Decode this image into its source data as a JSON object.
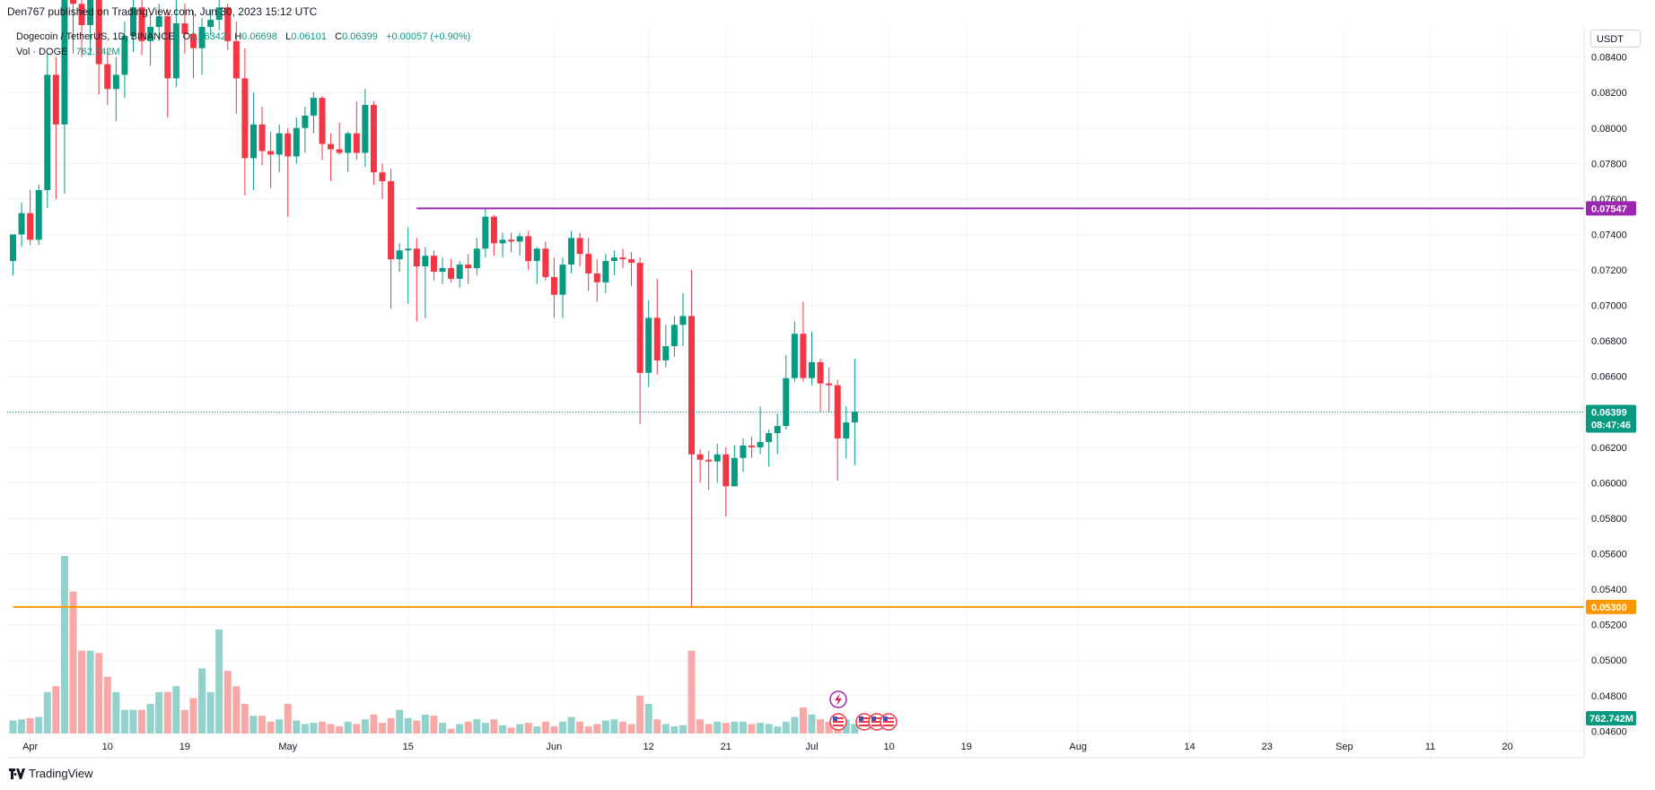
{
  "header": {
    "published_text": "Den767 published on TradingView.com, Jun 30, 2023 15:12 UTC"
  },
  "legend": {
    "symbol": "Dogecoin / TetherUS, 1D, BINANCE",
    "open_label": "O",
    "open": "0.06342",
    "high_label": "H",
    "high": "0.06698",
    "low_label": "L",
    "low": "0.06101",
    "close_label": "C",
    "close": "0.06399",
    "change": "+0.00057 (+0.90%)",
    "volume_label": "Vol · DOGE",
    "volume": "762.742M"
  },
  "currency_button": "USDT",
  "footer": {
    "brand": "TradingView"
  },
  "colors": {
    "up": "#089981",
    "down": "#f23645",
    "up_volume": "#92d2cc",
    "down_volume": "#f7a9a7",
    "resistance": "#9c27b0",
    "support": "#ff9800",
    "grid": "#f0f3fa"
  },
  "chart_data": {
    "type": "candlestick",
    "y_ticks": [
      "0.08400",
      "0.08200",
      "0.08000",
      "0.07800",
      "0.07600",
      "0.07400",
      "0.07200",
      "0.07000",
      "0.06800",
      "0.06600",
      "0.06400",
      "0.06200",
      "0.06000",
      "0.05800",
      "0.05600",
      "0.05400",
      "0.05200",
      "0.05000",
      "0.04800",
      "0.04600"
    ],
    "y_range": [
      0.0445,
      0.0857
    ],
    "x_ticks": [
      {
        "label": "Apr",
        "date": "2023-04-01"
      },
      {
        "label": "10",
        "date": "2023-04-10"
      },
      {
        "label": "19",
        "date": "2023-04-19"
      },
      {
        "label": "May",
        "date": "2023-05-01"
      },
      {
        "label": "15",
        "date": "2023-05-15"
      },
      {
        "label": "Jun",
        "date": "2023-06-01"
      },
      {
        "label": "12",
        "date": "2023-06-12"
      },
      {
        "label": "21",
        "date": "2023-06-21"
      },
      {
        "label": "Jul",
        "date": "2023-07-01"
      },
      {
        "label": "10",
        "date": "2023-07-10"
      },
      {
        "label": "19",
        "date": "2023-07-19"
      },
      {
        "label": "Aug",
        "date": "2023-08-01"
      },
      {
        "label": "14",
        "date": "2023-08-14"
      },
      {
        "label": "23",
        "date": "2023-08-23"
      },
      {
        "label": "Sep",
        "date": "2023-09-01"
      },
      {
        "label": "11",
        "date": "2023-09-11"
      },
      {
        "label": "20",
        "date": "2023-09-20"
      }
    ],
    "horizontal_lines": [
      {
        "value": 0.07547,
        "label": "0.07547",
        "color": "#9c27b0",
        "start_date": "2023-05-16"
      },
      {
        "value": 0.053,
        "label": "0.05300",
        "color": "#ff9800",
        "start_date": "2023-03-30"
      }
    ],
    "last_price": {
      "value": 0.06399,
      "label": "0.06399",
      "countdown": "08:47:46"
    },
    "last_volume_label": "762.742M",
    "candles": [
      {
        "d": "2023-03-30",
        "o": 0.0725,
        "h": 0.0738,
        "l": 0.0717,
        "c": 0.074,
        "v": 11
      },
      {
        "d": "2023-03-31",
        "o": 0.074,
        "h": 0.0758,
        "l": 0.0733,
        "c": 0.0752,
        "v": 12
      },
      {
        "d": "2023-04-01",
        "o": 0.0752,
        "h": 0.0765,
        "l": 0.0734,
        "c": 0.0737,
        "v": 13
      },
      {
        "d": "2023-04-02",
        "o": 0.0737,
        "h": 0.0768,
        "l": 0.0734,
        "c": 0.0765,
        "v": 14
      },
      {
        "d": "2023-04-03",
        "o": 0.0765,
        "h": 0.0842,
        "l": 0.0755,
        "c": 0.083,
        "v": 35
      },
      {
        "d": "2023-04-04",
        "o": 0.083,
        "h": 0.084,
        "l": 0.076,
        "c": 0.0802,
        "v": 40
      },
      {
        "d": "2023-04-05",
        "o": 0.0802,
        "h": 0.095,
        "l": 0.0763,
        "c": 0.0895,
        "v": 150
      },
      {
        "d": "2023-04-06",
        "o": 0.0895,
        "h": 0.0905,
        "l": 0.0842,
        "c": 0.087,
        "v": 120
      },
      {
        "d": "2023-04-07",
        "o": 0.087,
        "h": 0.0875,
        "l": 0.084,
        "c": 0.0858,
        "v": 70
      },
      {
        "d": "2023-04-08",
        "o": 0.0858,
        "h": 0.0878,
        "l": 0.0841,
        "c": 0.0873,
        "v": 70
      },
      {
        "d": "2023-04-09",
        "o": 0.0873,
        "h": 0.088,
        "l": 0.0819,
        "c": 0.0836,
        "v": 68
      },
      {
        "d": "2023-04-10",
        "o": 0.0836,
        "h": 0.0845,
        "l": 0.0813,
        "c": 0.0822,
        "v": 48
      },
      {
        "d": "2023-04-11",
        "o": 0.0822,
        "h": 0.084,
        "l": 0.0804,
        "c": 0.083,
        "v": 35
      },
      {
        "d": "2023-04-12",
        "o": 0.083,
        "h": 0.086,
        "l": 0.0817,
        "c": 0.0852,
        "v": 20
      },
      {
        "d": "2023-04-13",
        "o": 0.0852,
        "h": 0.088,
        "l": 0.0843,
        "c": 0.0868,
        "v": 20
      },
      {
        "d": "2023-04-14",
        "o": 0.0868,
        "h": 0.0878,
        "l": 0.0841,
        "c": 0.0849,
        "v": 20
      },
      {
        "d": "2023-04-15",
        "o": 0.0849,
        "h": 0.0864,
        "l": 0.0835,
        "c": 0.0857,
        "v": 25
      },
      {
        "d": "2023-04-16",
        "o": 0.0857,
        "h": 0.087,
        "l": 0.0849,
        "c": 0.0863,
        "v": 35
      },
      {
        "d": "2023-04-17",
        "o": 0.0863,
        "h": 0.0867,
        "l": 0.0806,
        "c": 0.0828,
        "v": 35
      },
      {
        "d": "2023-04-18",
        "o": 0.0828,
        "h": 0.0875,
        "l": 0.0823,
        "c": 0.0859,
        "v": 40
      },
      {
        "d": "2023-04-19",
        "o": 0.0859,
        "h": 0.087,
        "l": 0.0842,
        "c": 0.0853,
        "v": 20
      },
      {
        "d": "2023-04-20",
        "o": 0.0853,
        "h": 0.0866,
        "l": 0.0828,
        "c": 0.0845,
        "v": 30
      },
      {
        "d": "2023-04-21",
        "o": 0.0845,
        "h": 0.0862,
        "l": 0.083,
        "c": 0.0857,
        "v": 55
      },
      {
        "d": "2023-04-22",
        "o": 0.0857,
        "h": 0.0867,
        "l": 0.0852,
        "c": 0.0861,
        "v": 35
      },
      {
        "d": "2023-04-23",
        "o": 0.0861,
        "h": 0.0878,
        "l": 0.0855,
        "c": 0.0868,
        "v": 88
      },
      {
        "d": "2023-04-24",
        "o": 0.0868,
        "h": 0.087,
        "l": 0.0844,
        "c": 0.0849,
        "v": 53
      },
      {
        "d": "2023-04-25",
        "o": 0.0849,
        "h": 0.086,
        "l": 0.0808,
        "c": 0.0828,
        "v": 40
      },
      {
        "d": "2023-04-26",
        "o": 0.0828,
        "h": 0.0845,
        "l": 0.0762,
        "c": 0.0783,
        "v": 25
      },
      {
        "d": "2023-04-27",
        "o": 0.0783,
        "h": 0.082,
        "l": 0.0765,
        "c": 0.0802,
        "v": 15
      },
      {
        "d": "2023-04-28",
        "o": 0.0802,
        "h": 0.0812,
        "l": 0.0779,
        "c": 0.0787,
        "v": 15
      },
      {
        "d": "2023-04-29",
        "o": 0.0787,
        "h": 0.0798,
        "l": 0.0766,
        "c": 0.0785,
        "v": 10
      },
      {
        "d": "2023-04-30",
        "o": 0.0785,
        "h": 0.0802,
        "l": 0.0775,
        "c": 0.0797,
        "v": 12
      },
      {
        "d": "2023-05-01",
        "o": 0.0797,
        "h": 0.08,
        "l": 0.075,
        "c": 0.0784,
        "v": 25
      },
      {
        "d": "2023-05-02",
        "o": 0.0784,
        "h": 0.0806,
        "l": 0.078,
        "c": 0.08,
        "v": 11
      },
      {
        "d": "2023-05-03",
        "o": 0.08,
        "h": 0.0812,
        "l": 0.0786,
        "c": 0.0807,
        "v": 8
      },
      {
        "d": "2023-05-04",
        "o": 0.0807,
        "h": 0.082,
        "l": 0.0797,
        "c": 0.0817,
        "v": 9
      },
      {
        "d": "2023-05-05",
        "o": 0.0817,
        "h": 0.0818,
        "l": 0.0782,
        "c": 0.0791,
        "v": 10
      },
      {
        "d": "2023-05-06",
        "o": 0.0791,
        "h": 0.0797,
        "l": 0.077,
        "c": 0.0788,
        "v": 8
      },
      {
        "d": "2023-05-07",
        "o": 0.0788,
        "h": 0.0803,
        "l": 0.0785,
        "c": 0.0786,
        "v": 6
      },
      {
        "d": "2023-05-08",
        "o": 0.0786,
        "h": 0.0798,
        "l": 0.0775,
        "c": 0.0797,
        "v": 10
      },
      {
        "d": "2023-05-09",
        "o": 0.0797,
        "h": 0.0815,
        "l": 0.0782,
        "c": 0.0786,
        "v": 8
      },
      {
        "d": "2023-05-10",
        "o": 0.0786,
        "h": 0.0822,
        "l": 0.0778,
        "c": 0.0813,
        "v": 12
      },
      {
        "d": "2023-05-11",
        "o": 0.0813,
        "h": 0.0815,
        "l": 0.0768,
        "c": 0.0775,
        "v": 16
      },
      {
        "d": "2023-05-12",
        "o": 0.0775,
        "h": 0.078,
        "l": 0.076,
        "c": 0.077,
        "v": 9
      },
      {
        "d": "2023-05-13",
        "o": 0.077,
        "h": 0.0777,
        "l": 0.0698,
        "c": 0.0726,
        "v": 13
      },
      {
        "d": "2023-05-14",
        "o": 0.0726,
        "h": 0.0735,
        "l": 0.0719,
        "c": 0.0731,
        "v": 20
      },
      {
        "d": "2023-05-15",
        "o": 0.0731,
        "h": 0.0744,
        "l": 0.0701,
        "c": 0.0732,
        "v": 13
      },
      {
        "d": "2023-05-16",
        "o": 0.0732,
        "h": 0.0738,
        "l": 0.0691,
        "c": 0.0722,
        "v": 11
      },
      {
        "d": "2023-05-17",
        "o": 0.0722,
        "h": 0.0733,
        "l": 0.0693,
        "c": 0.0728,
        "v": 16
      },
      {
        "d": "2023-05-18",
        "o": 0.0728,
        "h": 0.0731,
        "l": 0.0714,
        "c": 0.0719,
        "v": 15
      },
      {
        "d": "2023-05-19",
        "o": 0.0719,
        "h": 0.0727,
        "l": 0.0712,
        "c": 0.0721,
        "v": 9
      },
      {
        "d": "2023-05-20",
        "o": 0.0721,
        "h": 0.0726,
        "l": 0.0713,
        "c": 0.0715,
        "v": 4
      },
      {
        "d": "2023-05-21",
        "o": 0.0715,
        "h": 0.0725,
        "l": 0.071,
        "c": 0.0723,
        "v": 8
      },
      {
        "d": "2023-05-22",
        "o": 0.0723,
        "h": 0.0729,
        "l": 0.0712,
        "c": 0.0721,
        "v": 10
      },
      {
        "d": "2023-05-23",
        "o": 0.0721,
        "h": 0.0738,
        "l": 0.0717,
        "c": 0.0732,
        "v": 12
      },
      {
        "d": "2023-05-24",
        "o": 0.0732,
        "h": 0.0755,
        "l": 0.0727,
        "c": 0.075,
        "v": 9
      },
      {
        "d": "2023-05-25",
        "o": 0.075,
        "h": 0.0751,
        "l": 0.0728,
        "c": 0.0735,
        "v": 12
      },
      {
        "d": "2023-05-26",
        "o": 0.0735,
        "h": 0.0741,
        "l": 0.0727,
        "c": 0.0737,
        "v": 7
      },
      {
        "d": "2023-05-27",
        "o": 0.0737,
        "h": 0.0741,
        "l": 0.073,
        "c": 0.0736,
        "v": 5
      },
      {
        "d": "2023-05-28",
        "o": 0.0736,
        "h": 0.0741,
        "l": 0.0728,
        "c": 0.0739,
        "v": 8
      },
      {
        "d": "2023-05-29",
        "o": 0.0739,
        "h": 0.0742,
        "l": 0.072,
        "c": 0.0725,
        "v": 9
      },
      {
        "d": "2023-05-30",
        "o": 0.0725,
        "h": 0.0733,
        "l": 0.0712,
        "c": 0.0732,
        "v": 6
      },
      {
        "d": "2023-05-31",
        "o": 0.0732,
        "h": 0.0736,
        "l": 0.0714,
        "c": 0.0716,
        "v": 10
      },
      {
        "d": "2023-06-01",
        "o": 0.0716,
        "h": 0.0727,
        "l": 0.0693,
        "c": 0.0706,
        "v": 6
      },
      {
        "d": "2023-06-02",
        "o": 0.0706,
        "h": 0.0727,
        "l": 0.0693,
        "c": 0.0723,
        "v": 10
      },
      {
        "d": "2023-06-03",
        "o": 0.0723,
        "h": 0.0742,
        "l": 0.0718,
        "c": 0.0738,
        "v": 14
      },
      {
        "d": "2023-06-04",
        "o": 0.0738,
        "h": 0.0741,
        "l": 0.0722,
        "c": 0.0729,
        "v": 10
      },
      {
        "d": "2023-06-05",
        "o": 0.0729,
        "h": 0.0738,
        "l": 0.0708,
        "c": 0.0718,
        "v": 6
      },
      {
        "d": "2023-06-06",
        "o": 0.0718,
        "h": 0.0726,
        "l": 0.0702,
        "c": 0.0713,
        "v": 8
      },
      {
        "d": "2023-06-07",
        "o": 0.0713,
        "h": 0.0729,
        "l": 0.0707,
        "c": 0.0725,
        "v": 11
      },
      {
        "d": "2023-06-08",
        "o": 0.0725,
        "h": 0.0731,
        "l": 0.0717,
        "c": 0.0727,
        "v": 12
      },
      {
        "d": "2023-06-09",
        "o": 0.0727,
        "h": 0.0732,
        "l": 0.0721,
        "c": 0.0726,
        "v": 10
      },
      {
        "d": "2023-06-10",
        "o": 0.0726,
        "h": 0.073,
        "l": 0.0711,
        "c": 0.0724,
        "v": 8
      },
      {
        "d": "2023-06-11",
        "o": 0.0724,
        "h": 0.0727,
        "l": 0.0633,
        "c": 0.0662,
        "v": 32
      },
      {
        "d": "2023-06-12",
        "o": 0.0662,
        "h": 0.0703,
        "l": 0.0654,
        "c": 0.0693,
        "v": 25
      },
      {
        "d": "2023-06-13",
        "o": 0.0693,
        "h": 0.0715,
        "l": 0.0661,
        "c": 0.0669,
        "v": 12
      },
      {
        "d": "2023-06-14",
        "o": 0.0669,
        "h": 0.0689,
        "l": 0.0665,
        "c": 0.0677,
        "v": 8
      },
      {
        "d": "2023-06-15",
        "o": 0.0677,
        "h": 0.0694,
        "l": 0.0671,
        "c": 0.0689,
        "v": 6
      },
      {
        "d": "2023-06-16",
        "o": 0.0689,
        "h": 0.0707,
        "l": 0.0677,
        "c": 0.0694,
        "v": 7
      },
      {
        "d": "2023-06-17",
        "o": 0.0694,
        "h": 0.072,
        "l": 0.053,
        "c": 0.0616,
        "v": 70
      },
      {
        "d": "2023-06-18",
        "o": 0.0616,
        "h": 0.0619,
        "l": 0.06,
        "c": 0.0613,
        "v": 12
      },
      {
        "d": "2023-06-19",
        "o": 0.0613,
        "h": 0.0618,
        "l": 0.0596,
        "c": 0.0612,
        "v": 8
      },
      {
        "d": "2023-06-20",
        "o": 0.0612,
        "h": 0.0622,
        "l": 0.06,
        "c": 0.0616,
        "v": 10
      },
      {
        "d": "2023-06-21",
        "o": 0.0616,
        "h": 0.062,
        "l": 0.0581,
        "c": 0.0598,
        "v": 9
      },
      {
        "d": "2023-06-22",
        "o": 0.0598,
        "h": 0.0621,
        "l": 0.0598,
        "c": 0.0614,
        "v": 10
      },
      {
        "d": "2023-06-23",
        "o": 0.0614,
        "h": 0.0625,
        "l": 0.0606,
        "c": 0.0621,
        "v": 10
      },
      {
        "d": "2023-06-24",
        "o": 0.0621,
        "h": 0.0626,
        "l": 0.0614,
        "c": 0.062,
        "v": 8
      },
      {
        "d": "2023-06-25",
        "o": 0.062,
        "h": 0.0643,
        "l": 0.0616,
        "c": 0.0623,
        "v": 9
      },
      {
        "d": "2023-06-26",
        "o": 0.0623,
        "h": 0.063,
        "l": 0.0609,
        "c": 0.0628,
        "v": 8
      },
      {
        "d": "2023-06-27",
        "o": 0.0628,
        "h": 0.0639,
        "l": 0.0616,
        "c": 0.0632,
        "v": 6
      },
      {
        "d": "2023-06-28",
        "o": 0.0632,
        "h": 0.0672,
        "l": 0.063,
        "c": 0.0659,
        "v": 10
      },
      {
        "d": "2023-06-29",
        "o": 0.0659,
        "h": 0.0691,
        "l": 0.0657,
        "c": 0.0684,
        "v": 14
      },
      {
        "d": "2023-06-30",
        "o": 0.0684,
        "h": 0.0702,
        "l": 0.0657,
        "c": 0.0659,
        "v": 22
      },
      {
        "d": "2023-07-01",
        "o": 0.0659,
        "h": 0.0685,
        "l": 0.0655,
        "c": 0.0668,
        "v": 16
      },
      {
        "d": "2023-07-02",
        "o": 0.0668,
        "h": 0.067,
        "l": 0.064,
        "c": 0.0656,
        "v": 12
      },
      {
        "d": "2023-07-03",
        "o": 0.0656,
        "h": 0.0665,
        "l": 0.064,
        "c": 0.0655,
        "v": 10
      },
      {
        "d": "2023-07-04",
        "o": 0.0655,
        "h": 0.0658,
        "l": 0.0601,
        "c": 0.0625,
        "v": 14
      },
      {
        "d": "2023-07-05",
        "o": 0.0625,
        "h": 0.0643,
        "l": 0.0614,
        "c": 0.0634,
        "v": 12
      },
      {
        "d": "2023-07-06",
        "o": 0.0634,
        "h": 0.067,
        "l": 0.061,
        "c": 0.064,
        "v": 8
      }
    ]
  }
}
